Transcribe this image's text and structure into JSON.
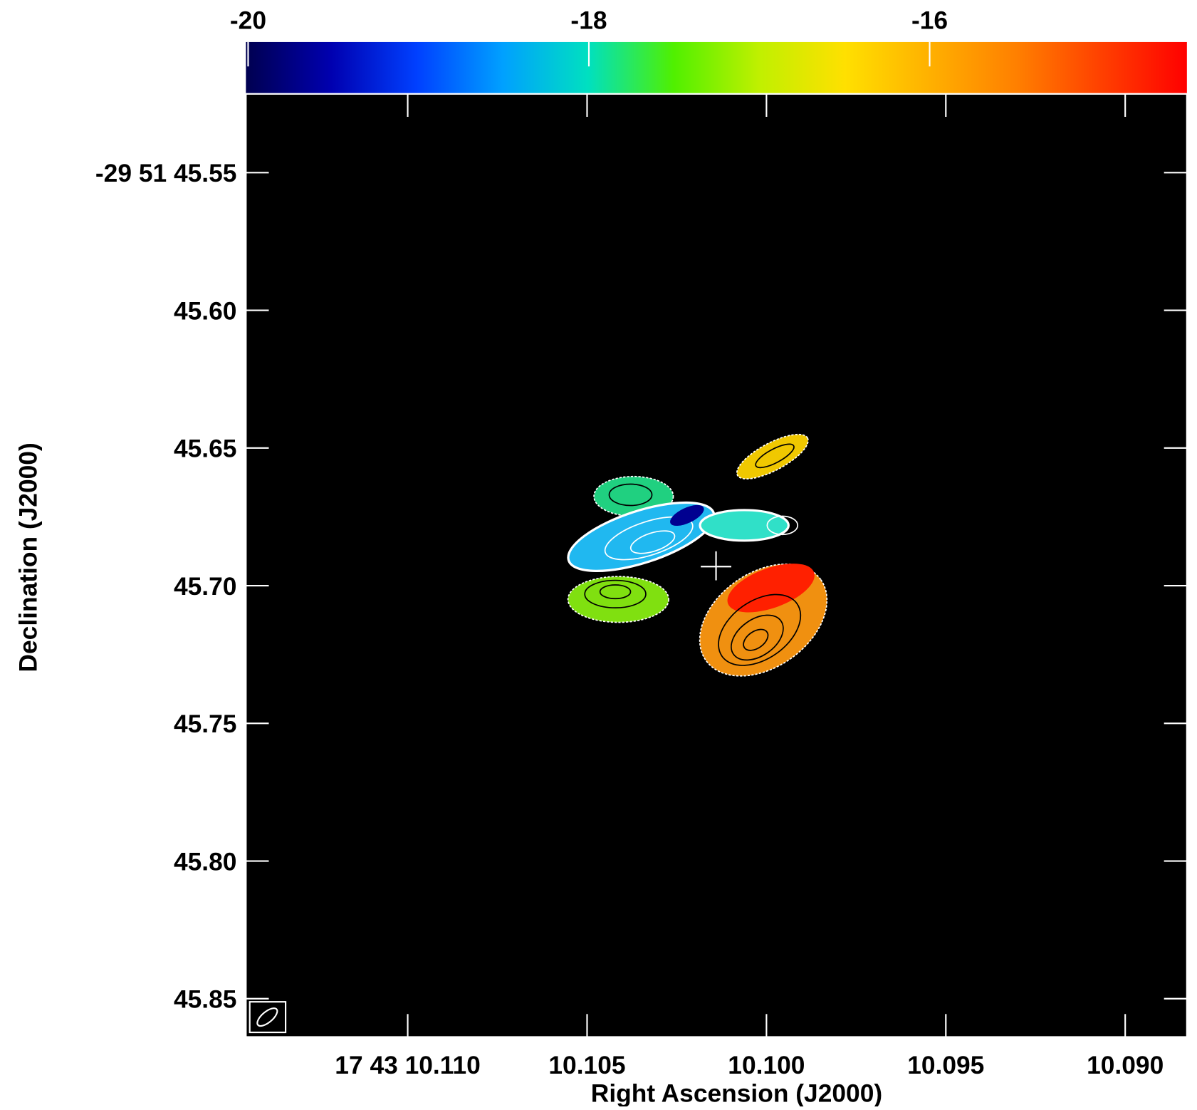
{
  "chart_data": {
    "type": "image",
    "xlabel": "Right Ascension (J2000)",
    "ylabel": "Declination (J2000)",
    "xlim": [
      10.11451,
      10.08828
    ],
    "xticks": [
      {
        "value": 10.11,
        "label": "17 43 10.110"
      },
      {
        "value": 10.105,
        "label": "10.105"
      },
      {
        "value": 10.1,
        "label": "10.100"
      },
      {
        "value": 10.095,
        "label": "10.095"
      },
      {
        "value": 10.09,
        "label": "10.090"
      }
    ],
    "ylim": [
      45.5214,
      45.8639
    ],
    "yticks": [
      {
        "value": 45.55,
        "label": "-29 51 45.55"
      },
      {
        "value": 45.6,
        "label": "45.60"
      },
      45.65,
      {
        "value": 45.7,
        "label": "45.70"
      },
      45.75,
      {
        "value": 45.8,
        "label": "45.80"
      },
      45.85
    ],
    "colorbar": {
      "lim": [
        -20.013,
        -14.49
      ],
      "ticks": [
        -20,
        -18,
        -16
      ],
      "colors": [
        "#000050",
        "#0000b0",
        "#0040ff",
        "#00a0ff",
        "#00e0c0",
        "#50f000",
        "#c0f000",
        "#ffe000",
        "#ffb000",
        "#ff8000",
        "#ff4000",
        "#ff0000"
      ]
    }
  }
}
